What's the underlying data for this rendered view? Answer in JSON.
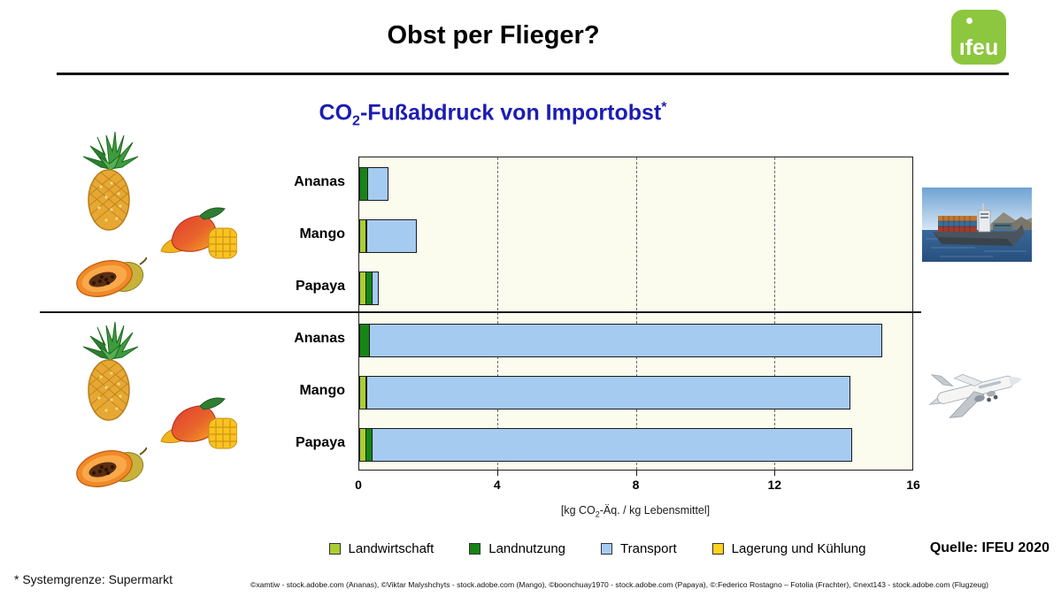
{
  "header": {
    "title": "Obst per Flieger?",
    "logo_text": "ifeu"
  },
  "chart_title": {
    "prefix": "CO",
    "sub": "2",
    "main": "-Fußabdruck von Importobst",
    "sup": "*"
  },
  "axis_unit": {
    "prefix": "[kg CO",
    "sub": "2",
    "suffix": "-Äq. / kg Lebensmittel]"
  },
  "legend": {
    "items": [
      {
        "label": "Landwirtschaft",
        "color": "#A9CE33"
      },
      {
        "label": "Landnutzung",
        "color": "#168516"
      },
      {
        "label": "Transport",
        "color": "#A6CBF1"
      },
      {
        "label": "Lagerung und Kühlung",
        "color": "#FFD21E"
      }
    ]
  },
  "source": {
    "label": "Quelle: IFEU 2020"
  },
  "footnote": {
    "label": "* Systemgrenze: Supermarkt"
  },
  "credits": {
    "label": "©xamtiw - stock.adobe.com (Ananas), ©Viktar Malyshchyts - stock.adobe.com (Mango), ©boonchuay1970 - stock.adobe.com (Papaya), ©:Federico Rostagno – Fotolia (Frachter), ©next143 - stock.adobe.com (Flugzeug)",
    "color": "#111111"
  },
  "chart_data": {
    "type": "bar",
    "orientation": "horizontal",
    "stacked": true,
    "title": "CO2-Fußabdruck von Importobst*",
    "xlabel": "[kg CO2-Äq. / kg Lebensmittel]",
    "xlim": [
      0,
      16
    ],
    "xticks": [
      0,
      4,
      8,
      12,
      16
    ],
    "grid": "dashed vertical at 4, 8, 12",
    "legend_position": "bottom",
    "series_keys": [
      "Landwirtschaft",
      "Landnutzung",
      "Transport",
      "Lagerung und Kühlung"
    ],
    "sections": [
      {
        "name": "Seefracht (Frachter)",
        "rows": [
          {
            "label": "Ananas",
            "values": [
              0.0,
              0.25,
              0.6,
              0.0
            ],
            "total": 0.85
          },
          {
            "label": "Mango",
            "values": [
              0.2,
              0.05,
              1.45,
              0.0
            ],
            "total": 1.7
          },
          {
            "label": "Papaya",
            "values": [
              0.2,
              0.2,
              0.2,
              0.0
            ],
            "total": 0.6
          }
        ]
      },
      {
        "name": "Luftfracht (Flugzeug)",
        "rows": [
          {
            "label": "Ananas",
            "values": [
              0.0,
              0.3,
              14.8,
              0.0
            ],
            "total": 15.1
          },
          {
            "label": "Mango",
            "values": [
              0.2,
              0.05,
              13.95,
              0.0
            ],
            "total": 14.2
          },
          {
            "label": "Papaya",
            "values": [
              0.2,
              0.2,
              13.85,
              0.0
            ],
            "total": 14.25
          }
        ]
      }
    ]
  }
}
